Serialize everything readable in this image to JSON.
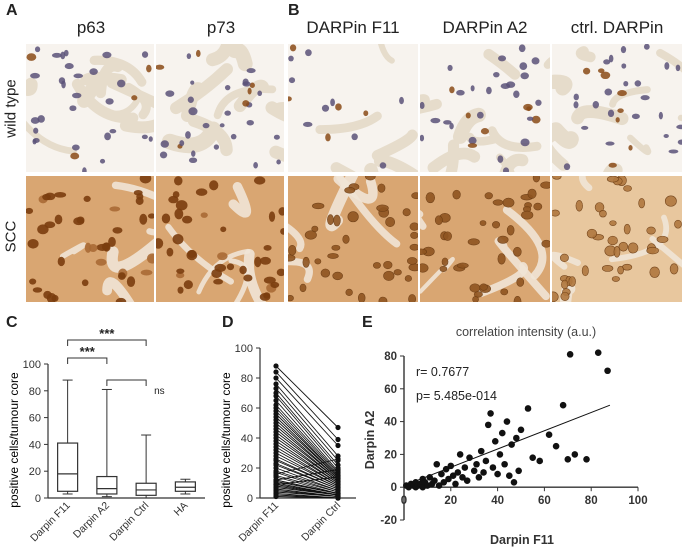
{
  "panels": {
    "A": {
      "letter": "A",
      "columns": [
        "p63",
        "p73"
      ]
    },
    "B": {
      "letter": "B",
      "columns": [
        "DARPin F11",
        "DARPin A2",
        "ctrl. DARPin"
      ]
    },
    "rows": [
      "wild type",
      "SCC"
    ],
    "C": {
      "letter": "C"
    },
    "D": {
      "letter": "D"
    },
    "E": {
      "letter": "E"
    }
  },
  "colors": {
    "tissue_wt": "#eee3d4",
    "tissue_scc": "#d49b62",
    "nucleus_blue": "#5a5178",
    "nucleus_brown": "#8a4a16",
    "stroma": "#e6dccb",
    "axis": "#333333"
  },
  "chart_data": [
    {
      "type": "box",
      "panel": "C",
      "ylabel": "positive cells/tumour core",
      "categories": [
        "Darpin F11",
        "Darpin A2",
        "Darpin Ctrl",
        "HA"
      ],
      "boxes": [
        {
          "min": 3,
          "q1": 5,
          "median": 18,
          "q3": 41,
          "max": 88
        },
        {
          "min": 1,
          "q1": 3,
          "median": 7,
          "q3": 16,
          "max": 81
        },
        {
          "min": 0,
          "q1": 2,
          "median": 6,
          "q3": 11,
          "max": 47
        },
        {
          "min": 3,
          "q1": 5,
          "median": 8,
          "q3": 12,
          "max": 14
        }
      ],
      "ylim": [
        0,
        100
      ],
      "yticks": [
        0,
        20,
        40,
        60,
        80,
        100
      ],
      "significance": [
        {
          "from": 0,
          "to": 1,
          "label": "***"
        },
        {
          "from": 0,
          "to": 2,
          "label": "***"
        },
        {
          "from": 1,
          "to": 2,
          "label": "ns"
        }
      ]
    },
    {
      "type": "paired-line",
      "panel": "D",
      "ylabel": "positive cells/tumour core",
      "categories": [
        "Darpin F11",
        "Darpin Ctrl"
      ],
      "ylim": [
        0,
        100
      ],
      "yticks": [
        0,
        20,
        40,
        60,
        80,
        100
      ],
      "pairs": [
        [
          88,
          47
        ],
        [
          84,
          39
        ],
        [
          80,
          35
        ],
        [
          76,
          28
        ],
        [
          73,
          25
        ],
        [
          70,
          22
        ],
        [
          68,
          20
        ],
        [
          65,
          18
        ],
        [
          62,
          17
        ],
        [
          60,
          16
        ],
        [
          58,
          15
        ],
        [
          56,
          15
        ],
        [
          54,
          14
        ],
        [
          52,
          14
        ],
        [
          50,
          13
        ],
        [
          48,
          13
        ],
        [
          46,
          12
        ],
        [
          44,
          12
        ],
        [
          42,
          11
        ],
        [
          40,
          11
        ],
        [
          38,
          10
        ],
        [
          36,
          10
        ],
        [
          34,
          9
        ],
        [
          32,
          9
        ],
        [
          30,
          8
        ],
        [
          28,
          8
        ],
        [
          26,
          7
        ],
        [
          25,
          7
        ],
        [
          23,
          6
        ],
        [
          22,
          6
        ],
        [
          20,
          5
        ],
        [
          18,
          5
        ],
        [
          17,
          4
        ],
        [
          15,
          4
        ],
        [
          14,
          3
        ],
        [
          12,
          3
        ],
        [
          11,
          3
        ],
        [
          10,
          2
        ],
        [
          9,
          2
        ],
        [
          8,
          2
        ],
        [
          7,
          2
        ],
        [
          6,
          1
        ],
        [
          5,
          1
        ],
        [
          4,
          1
        ],
        [
          3,
          0
        ],
        [
          2,
          0
        ],
        [
          1,
          0
        ],
        [
          16,
          26
        ],
        [
          12,
          19
        ],
        [
          9,
          14
        ]
      ]
    },
    {
      "type": "scatter",
      "panel": "E",
      "title": "correlation intensity (a.u.)",
      "xlabel": "Darpin F11",
      "ylabel": "Darpin A2",
      "xlim": [
        0,
        100
      ],
      "ylim": [
        -20,
        80
      ],
      "xticks": [
        0,
        20,
        40,
        60,
        80,
        100
      ],
      "yticks": [
        -20,
        0,
        20,
        40,
        60,
        80
      ],
      "annotations": [
        "r= 0.7677",
        "p= 5.485e-014"
      ],
      "regression": {
        "x0": 0,
        "y0": 1,
        "x1": 88,
        "y1": 50
      },
      "points": [
        [
          1,
          1
        ],
        [
          2,
          0
        ],
        [
          3,
          2
        ],
        [
          4,
          1
        ],
        [
          5,
          0
        ],
        [
          5,
          3
        ],
        [
          6,
          1
        ],
        [
          7,
          2
        ],
        [
          8,
          0
        ],
        [
          8,
          5
        ],
        [
          9,
          3
        ],
        [
          10,
          1
        ],
        [
          11,
          6
        ],
        [
          12,
          2
        ],
        [
          13,
          4
        ],
        [
          14,
          14
        ],
        [
          15,
          1
        ],
        [
          16,
          8
        ],
        [
          17,
          3
        ],
        [
          18,
          11
        ],
        [
          19,
          5
        ],
        [
          20,
          13
        ],
        [
          21,
          7
        ],
        [
          22,
          2
        ],
        [
          23,
          9
        ],
        [
          24,
          20
        ],
        [
          25,
          6
        ],
        [
          26,
          12
        ],
        [
          27,
          4
        ],
        [
          28,
          18
        ],
        [
          30,
          10
        ],
        [
          31,
          14
        ],
        [
          32,
          6
        ],
        [
          33,
          22
        ],
        [
          34,
          9
        ],
        [
          35,
          16
        ],
        [
          36,
          38
        ],
        [
          37,
          45
        ],
        [
          38,
          12
        ],
        [
          39,
          28
        ],
        [
          40,
          8
        ],
        [
          41,
          20
        ],
        [
          42,
          33
        ],
        [
          43,
          14
        ],
        [
          44,
          40
        ],
        [
          45,
          7
        ],
        [
          46,
          26
        ],
        [
          47,
          3
        ],
        [
          48,
          30
        ],
        [
          49,
          10
        ],
        [
          50,
          35
        ],
        [
          53,
          48
        ],
        [
          55,
          18
        ],
        [
          58,
          16
        ],
        [
          62,
          32
        ],
        [
          65,
          25
        ],
        [
          68,
          50
        ],
        [
          70,
          17
        ],
        [
          71,
          81
        ],
        [
          73,
          20
        ],
        [
          78,
          17
        ],
        [
          83,
          82
        ],
        [
          87,
          71
        ]
      ]
    }
  ]
}
